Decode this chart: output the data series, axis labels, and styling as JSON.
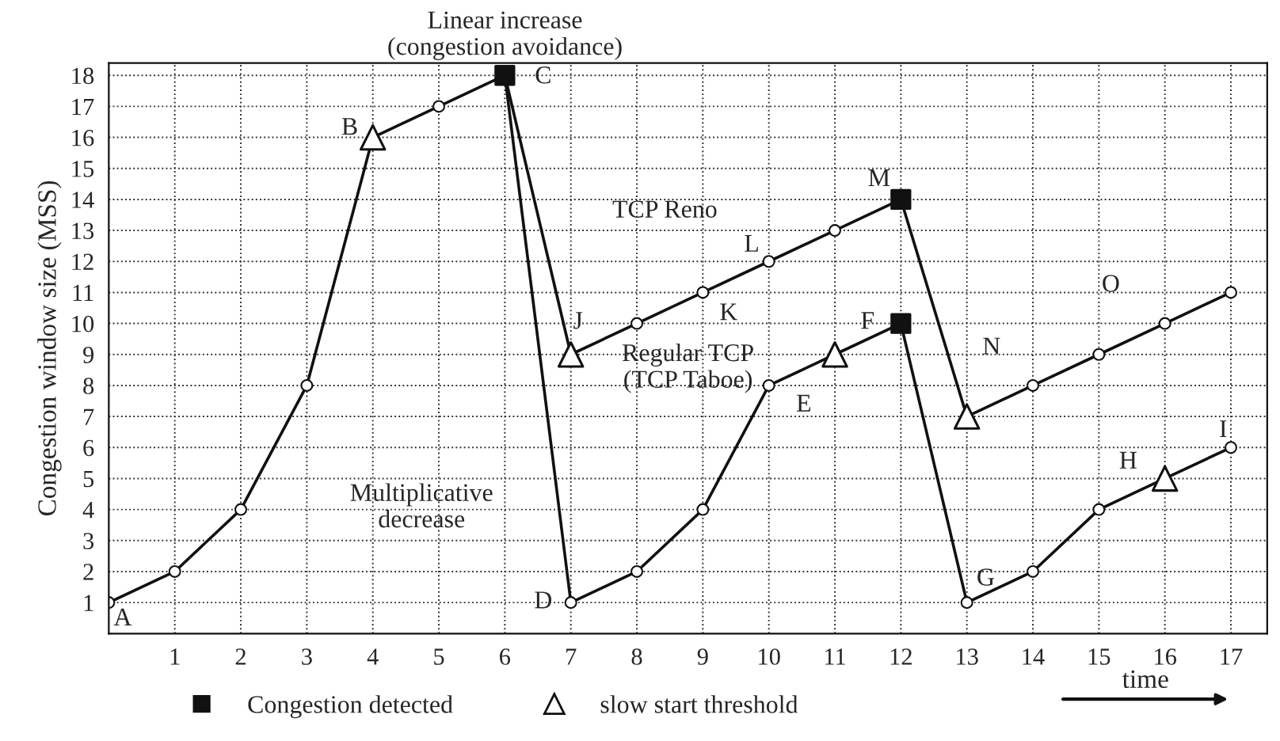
{
  "chart_data": {
    "type": "line",
    "ylabel": "Congestion window size (MSS)",
    "xlabel": "time",
    "xlim": [
      0,
      17.55
    ],
    "ylim": [
      0,
      18.4
    ],
    "xticks": [
      1,
      2,
      3,
      4,
      5,
      6,
      7,
      8,
      9,
      10,
      11,
      12,
      13,
      14,
      15,
      16,
      17
    ],
    "yticks": [
      1,
      2,
      3,
      4,
      5,
      6,
      7,
      8,
      9,
      10,
      11,
      12,
      13,
      14,
      15,
      16,
      17,
      18
    ],
    "grid": true,
    "legend": "bottom left",
    "line_style": "solid",
    "series": [
      {
        "color": "#111111",
        "marker": "circle",
        "x": [
          0,
          1,
          2,
          3,
          4,
          5,
          6
        ],
        "values": [
          1,
          2,
          4,
          8,
          16,
          17,
          18
        ]
      },
      {
        "color": "#111111",
        "marker": "circle",
        "x": [
          6,
          7,
          8,
          9,
          10,
          11,
          12,
          13,
          14,
          15,
          16,
          17
        ],
        "values": [
          18,
          9,
          10,
          11,
          12,
          13,
          14,
          7,
          8,
          9,
          10,
          11
        ]
      },
      {
        "color": "#111111",
        "marker": "circle",
        "x": [
          6,
          7,
          8,
          9,
          10,
          11,
          12,
          13,
          14,
          15,
          16,
          17
        ],
        "values": [
          18,
          1,
          2,
          4,
          8,
          9,
          10,
          1,
          2,
          4,
          5,
          6
        ]
      },
      {
        "type": "scatter",
        "name": "Congestion detected",
        "color": "#111111",
        "marker": "square",
        "x": [
          6,
          12,
          12
        ],
        "values": [
          18,
          14,
          10
        ]
      },
      {
        "type": "scatter",
        "name": "slow start threshold",
        "color": "#ffffff",
        "marker": "triangle",
        "x": [
          4,
          7,
          11,
          13,
          16
        ],
        "values": [
          16,
          9,
          9,
          7,
          5
        ]
      }
    ],
    "annotations": [
      "A",
      "B",
      "C",
      "D",
      "E",
      "F",
      "G",
      "H",
      "I",
      "J",
      "K",
      "L",
      "M",
      "N",
      "O",
      "Linear increase\n(congestion avoidance)",
      "TCP Reno",
      "Regular TCP\n(TCP Taboe)",
      "Multiplicative\ndecrease"
    ]
  }
}
